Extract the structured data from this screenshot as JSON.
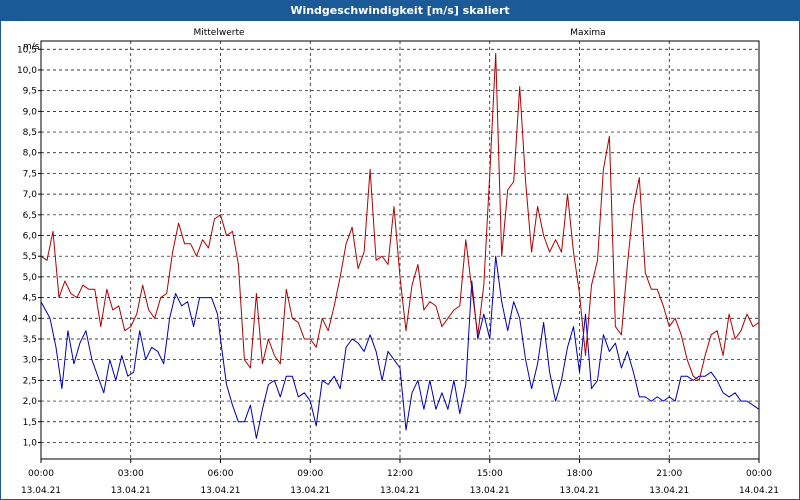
{
  "window": {
    "title": "Windgeschwindigkeit [m/s] skaliert"
  },
  "chart_data": {
    "type": "line",
    "title": "Windgeschwindigkeit [m/s] skaliert",
    "ylabel": "m/s",
    "xlabel": "",
    "ylim": [
      0.6,
      10.7
    ],
    "xlim": [
      0,
      24
    ],
    "grid": true,
    "y_ticks": [
      "1,0",
      "1,5",
      "2,0",
      "2,5",
      "3,0",
      "3,5",
      "4,0",
      "4,5",
      "5,0",
      "5,5",
      "6,0",
      "6,5",
      "7,0",
      "7,5",
      "8,0",
      "8,5",
      "9,0",
      "9,5",
      "10,0",
      "10,5"
    ],
    "x_ticks": [
      {
        "time": "00:00",
        "date": "13.04.21"
      },
      {
        "time": "03:00",
        "date": "13.04.21"
      },
      {
        "time": "06:00",
        "date": "13.04.21"
      },
      {
        "time": "09:00",
        "date": "13.04.21"
      },
      {
        "time": "12:00",
        "date": "13.04.21"
      },
      {
        "time": "15:00",
        "date": "13.04.21"
      },
      {
        "time": "18:00",
        "date": "13.04.21"
      },
      {
        "time": "21:00",
        "date": "13.04.21"
      },
      {
        "time": "00:00",
        "date": "14.04.21"
      }
    ],
    "series": [
      {
        "name": "Mittelwerte",
        "color": "#0000b0",
        "points": [
          [
            0,
            4.4
          ],
          [
            0.3,
            4.0
          ],
          [
            0.5,
            3.3
          ],
          [
            0.7,
            2.3
          ],
          [
            0.9,
            3.7
          ],
          [
            1.1,
            2.9
          ],
          [
            1.3,
            3.4
          ],
          [
            1.5,
            3.7
          ],
          [
            1.7,
            3.0
          ],
          [
            1.9,
            2.6
          ],
          [
            2.1,
            2.2
          ],
          [
            2.3,
            3.0
          ],
          [
            2.5,
            2.5
          ],
          [
            2.7,
            3.1
          ],
          [
            2.9,
            2.6
          ],
          [
            3.1,
            2.7
          ],
          [
            3.3,
            3.7
          ],
          [
            3.5,
            3.0
          ],
          [
            3.7,
            3.3
          ],
          [
            3.9,
            3.2
          ],
          [
            4.1,
            2.9
          ],
          [
            4.3,
            4.0
          ],
          [
            4.5,
            4.6
          ],
          [
            4.7,
            4.3
          ],
          [
            4.9,
            4.4
          ],
          [
            5.1,
            3.8
          ],
          [
            5.3,
            4.5
          ],
          [
            5.5,
            4.5
          ],
          [
            5.7,
            4.5
          ],
          [
            5.9,
            4.1
          ],
          [
            6.0,
            3.5
          ],
          [
            6.2,
            2.4
          ],
          [
            6.4,
            1.9
          ],
          [
            6.6,
            1.5
          ],
          [
            6.8,
            1.5
          ],
          [
            7.0,
            1.9
          ],
          [
            7.2,
            1.1
          ],
          [
            7.4,
            1.8
          ],
          [
            7.6,
            2.4
          ],
          [
            7.8,
            2.5
          ],
          [
            8.0,
            2.1
          ],
          [
            8.2,
            2.6
          ],
          [
            8.4,
            2.6
          ],
          [
            8.6,
            2.1
          ],
          [
            8.8,
            2.2
          ],
          [
            9.0,
            2.0
          ],
          [
            9.2,
            1.4
          ],
          [
            9.4,
            2.5
          ],
          [
            9.6,
            2.4
          ],
          [
            9.8,
            2.6
          ],
          [
            10.0,
            2.3
          ],
          [
            10.2,
            3.3
          ],
          [
            10.4,
            3.5
          ],
          [
            10.6,
            3.4
          ],
          [
            10.8,
            3.2
          ],
          [
            11.0,
            3.6
          ],
          [
            11.2,
            3.2
          ],
          [
            11.4,
            2.5
          ],
          [
            11.6,
            3.2
          ],
          [
            11.8,
            3.0
          ],
          [
            12.0,
            2.8
          ],
          [
            12.2,
            1.3
          ],
          [
            12.4,
            2.2
          ],
          [
            12.6,
            2.5
          ],
          [
            12.8,
            1.8
          ],
          [
            13.0,
            2.5
          ],
          [
            13.2,
            1.8
          ],
          [
            13.4,
            2.2
          ],
          [
            13.6,
            1.8
          ],
          [
            13.8,
            2.5
          ],
          [
            14.0,
            1.7
          ],
          [
            14.2,
            2.4
          ],
          [
            14.4,
            4.9
          ],
          [
            14.6,
            3.5
          ],
          [
            14.8,
            4.1
          ],
          [
            15.0,
            3.5
          ],
          [
            15.2,
            5.5
          ],
          [
            15.4,
            4.4
          ],
          [
            15.6,
            3.7
          ],
          [
            15.8,
            4.4
          ],
          [
            16.0,
            4.0
          ],
          [
            16.2,
            3.0
          ],
          [
            16.4,
            2.3
          ],
          [
            16.6,
            2.9
          ],
          [
            16.8,
            3.9
          ],
          [
            17.0,
            2.7
          ],
          [
            17.2,
            2.0
          ],
          [
            17.4,
            2.5
          ],
          [
            17.6,
            3.3
          ],
          [
            17.8,
            3.8
          ],
          [
            18.0,
            2.7
          ],
          [
            18.2,
            4.1
          ],
          [
            18.4,
            2.3
          ],
          [
            18.6,
            2.5
          ],
          [
            18.8,
            3.6
          ],
          [
            19.0,
            3.2
          ],
          [
            19.2,
            3.4
          ],
          [
            19.4,
            2.8
          ],
          [
            19.6,
            3.2
          ],
          [
            19.8,
            2.7
          ],
          [
            20.0,
            2.1
          ],
          [
            20.2,
            2.1
          ],
          [
            20.4,
            2.0
          ],
          [
            20.6,
            2.1
          ],
          [
            20.8,
            2.0
          ],
          [
            21.0,
            2.1
          ],
          [
            21.2,
            2.0
          ],
          [
            21.4,
            2.6
          ],
          [
            21.6,
            2.6
          ],
          [
            21.8,
            2.5
          ],
          [
            22.0,
            2.6
          ],
          [
            22.2,
            2.6
          ],
          [
            22.4,
            2.7
          ],
          [
            22.6,
            2.5
          ],
          [
            22.8,
            2.2
          ],
          [
            23.0,
            2.1
          ],
          [
            23.2,
            2.2
          ],
          [
            23.4,
            2.0
          ],
          [
            23.6,
            2.0
          ],
          [
            23.8,
            1.9
          ],
          [
            24.0,
            1.8
          ]
        ]
      },
      {
        "name": "Maxima",
        "color": "#b00000",
        "points": [
          [
            0,
            5.5
          ],
          [
            0.2,
            5.4
          ],
          [
            0.4,
            6.1
          ],
          [
            0.6,
            4.5
          ],
          [
            0.8,
            4.9
          ],
          [
            1.0,
            4.6
          ],
          [
            1.2,
            4.5
          ],
          [
            1.4,
            4.8
          ],
          [
            1.6,
            4.7
          ],
          [
            1.8,
            4.7
          ],
          [
            2.0,
            3.8
          ],
          [
            2.2,
            4.7
          ],
          [
            2.4,
            4.2
          ],
          [
            2.6,
            4.3
          ],
          [
            2.8,
            3.7
          ],
          [
            3.0,
            3.8
          ],
          [
            3.2,
            4.1
          ],
          [
            3.4,
            4.8
          ],
          [
            3.6,
            4.2
          ],
          [
            3.8,
            4.0
          ],
          [
            4.0,
            4.5
          ],
          [
            4.2,
            4.6
          ],
          [
            4.4,
            5.6
          ],
          [
            4.6,
            6.3
          ],
          [
            4.8,
            5.8
          ],
          [
            5.0,
            5.8
          ],
          [
            5.2,
            5.5
          ],
          [
            5.4,
            5.9
          ],
          [
            5.6,
            5.7
          ],
          [
            5.8,
            6.4
          ],
          [
            6.0,
            6.5
          ],
          [
            6.2,
            6.0
          ],
          [
            6.4,
            6.1
          ],
          [
            6.6,
            5.3
          ],
          [
            6.8,
            3.0
          ],
          [
            7.0,
            2.8
          ],
          [
            7.2,
            4.6
          ],
          [
            7.4,
            2.9
          ],
          [
            7.6,
            3.5
          ],
          [
            7.8,
            3.1
          ],
          [
            8.0,
            2.9
          ],
          [
            8.2,
            4.7
          ],
          [
            8.4,
            4.0
          ],
          [
            8.6,
            3.9
          ],
          [
            8.8,
            3.5
          ],
          [
            9.0,
            3.5
          ],
          [
            9.2,
            3.3
          ],
          [
            9.4,
            4.0
          ],
          [
            9.6,
            3.7
          ],
          [
            9.8,
            4.3
          ],
          [
            10.0,
            5.0
          ],
          [
            10.2,
            5.8
          ],
          [
            10.4,
            6.2
          ],
          [
            10.6,
            5.2
          ],
          [
            10.8,
            5.6
          ],
          [
            11.0,
            7.6
          ],
          [
            11.2,
            5.4
          ],
          [
            11.4,
            5.5
          ],
          [
            11.6,
            5.3
          ],
          [
            11.8,
            6.7
          ],
          [
            12.0,
            5.0
          ],
          [
            12.2,
            3.7
          ],
          [
            12.4,
            4.8
          ],
          [
            12.6,
            5.3
          ],
          [
            12.8,
            4.2
          ],
          [
            13.0,
            4.4
          ],
          [
            13.2,
            4.3
          ],
          [
            13.4,
            3.8
          ],
          [
            13.6,
            4.0
          ],
          [
            13.8,
            4.2
          ],
          [
            14.0,
            4.3
          ],
          [
            14.2,
            5.9
          ],
          [
            14.4,
            4.7
          ],
          [
            14.6,
            3.6
          ],
          [
            14.8,
            4.8
          ],
          [
            15.0,
            7.5
          ],
          [
            15.2,
            10.4
          ],
          [
            15.4,
            5.5
          ],
          [
            15.6,
            7.1
          ],
          [
            15.8,
            7.3
          ],
          [
            16.0,
            9.6
          ],
          [
            16.2,
            7.3
          ],
          [
            16.4,
            5.6
          ],
          [
            16.6,
            6.7
          ],
          [
            16.8,
            6.0
          ],
          [
            17.0,
            5.6
          ],
          [
            17.2,
            5.9
          ],
          [
            17.4,
            5.6
          ],
          [
            17.6,
            7.0
          ],
          [
            17.8,
            5.6
          ],
          [
            18.0,
            4.6
          ],
          [
            18.2,
            3.1
          ],
          [
            18.4,
            4.8
          ],
          [
            18.6,
            5.4
          ],
          [
            18.8,
            7.6
          ],
          [
            19.0,
            8.4
          ],
          [
            19.2,
            3.8
          ],
          [
            19.4,
            3.6
          ],
          [
            19.6,
            5.3
          ],
          [
            19.8,
            6.7
          ],
          [
            20.0,
            7.4
          ],
          [
            20.2,
            5.1
          ],
          [
            20.4,
            4.7
          ],
          [
            20.6,
            4.7
          ],
          [
            20.8,
            4.3
          ],
          [
            21.0,
            3.8
          ],
          [
            21.2,
            4.0
          ],
          [
            21.4,
            3.6
          ],
          [
            21.6,
            3.0
          ],
          [
            21.8,
            2.6
          ],
          [
            22.0,
            2.5
          ],
          [
            22.2,
            3.1
          ],
          [
            22.4,
            3.6
          ],
          [
            22.6,
            3.7
          ],
          [
            22.8,
            3.1
          ],
          [
            23.0,
            4.1
          ],
          [
            23.2,
            3.5
          ],
          [
            23.4,
            3.7
          ],
          [
            23.6,
            4.1
          ],
          [
            23.8,
            3.8
          ],
          [
            24.0,
            3.9
          ]
        ]
      }
    ]
  }
}
